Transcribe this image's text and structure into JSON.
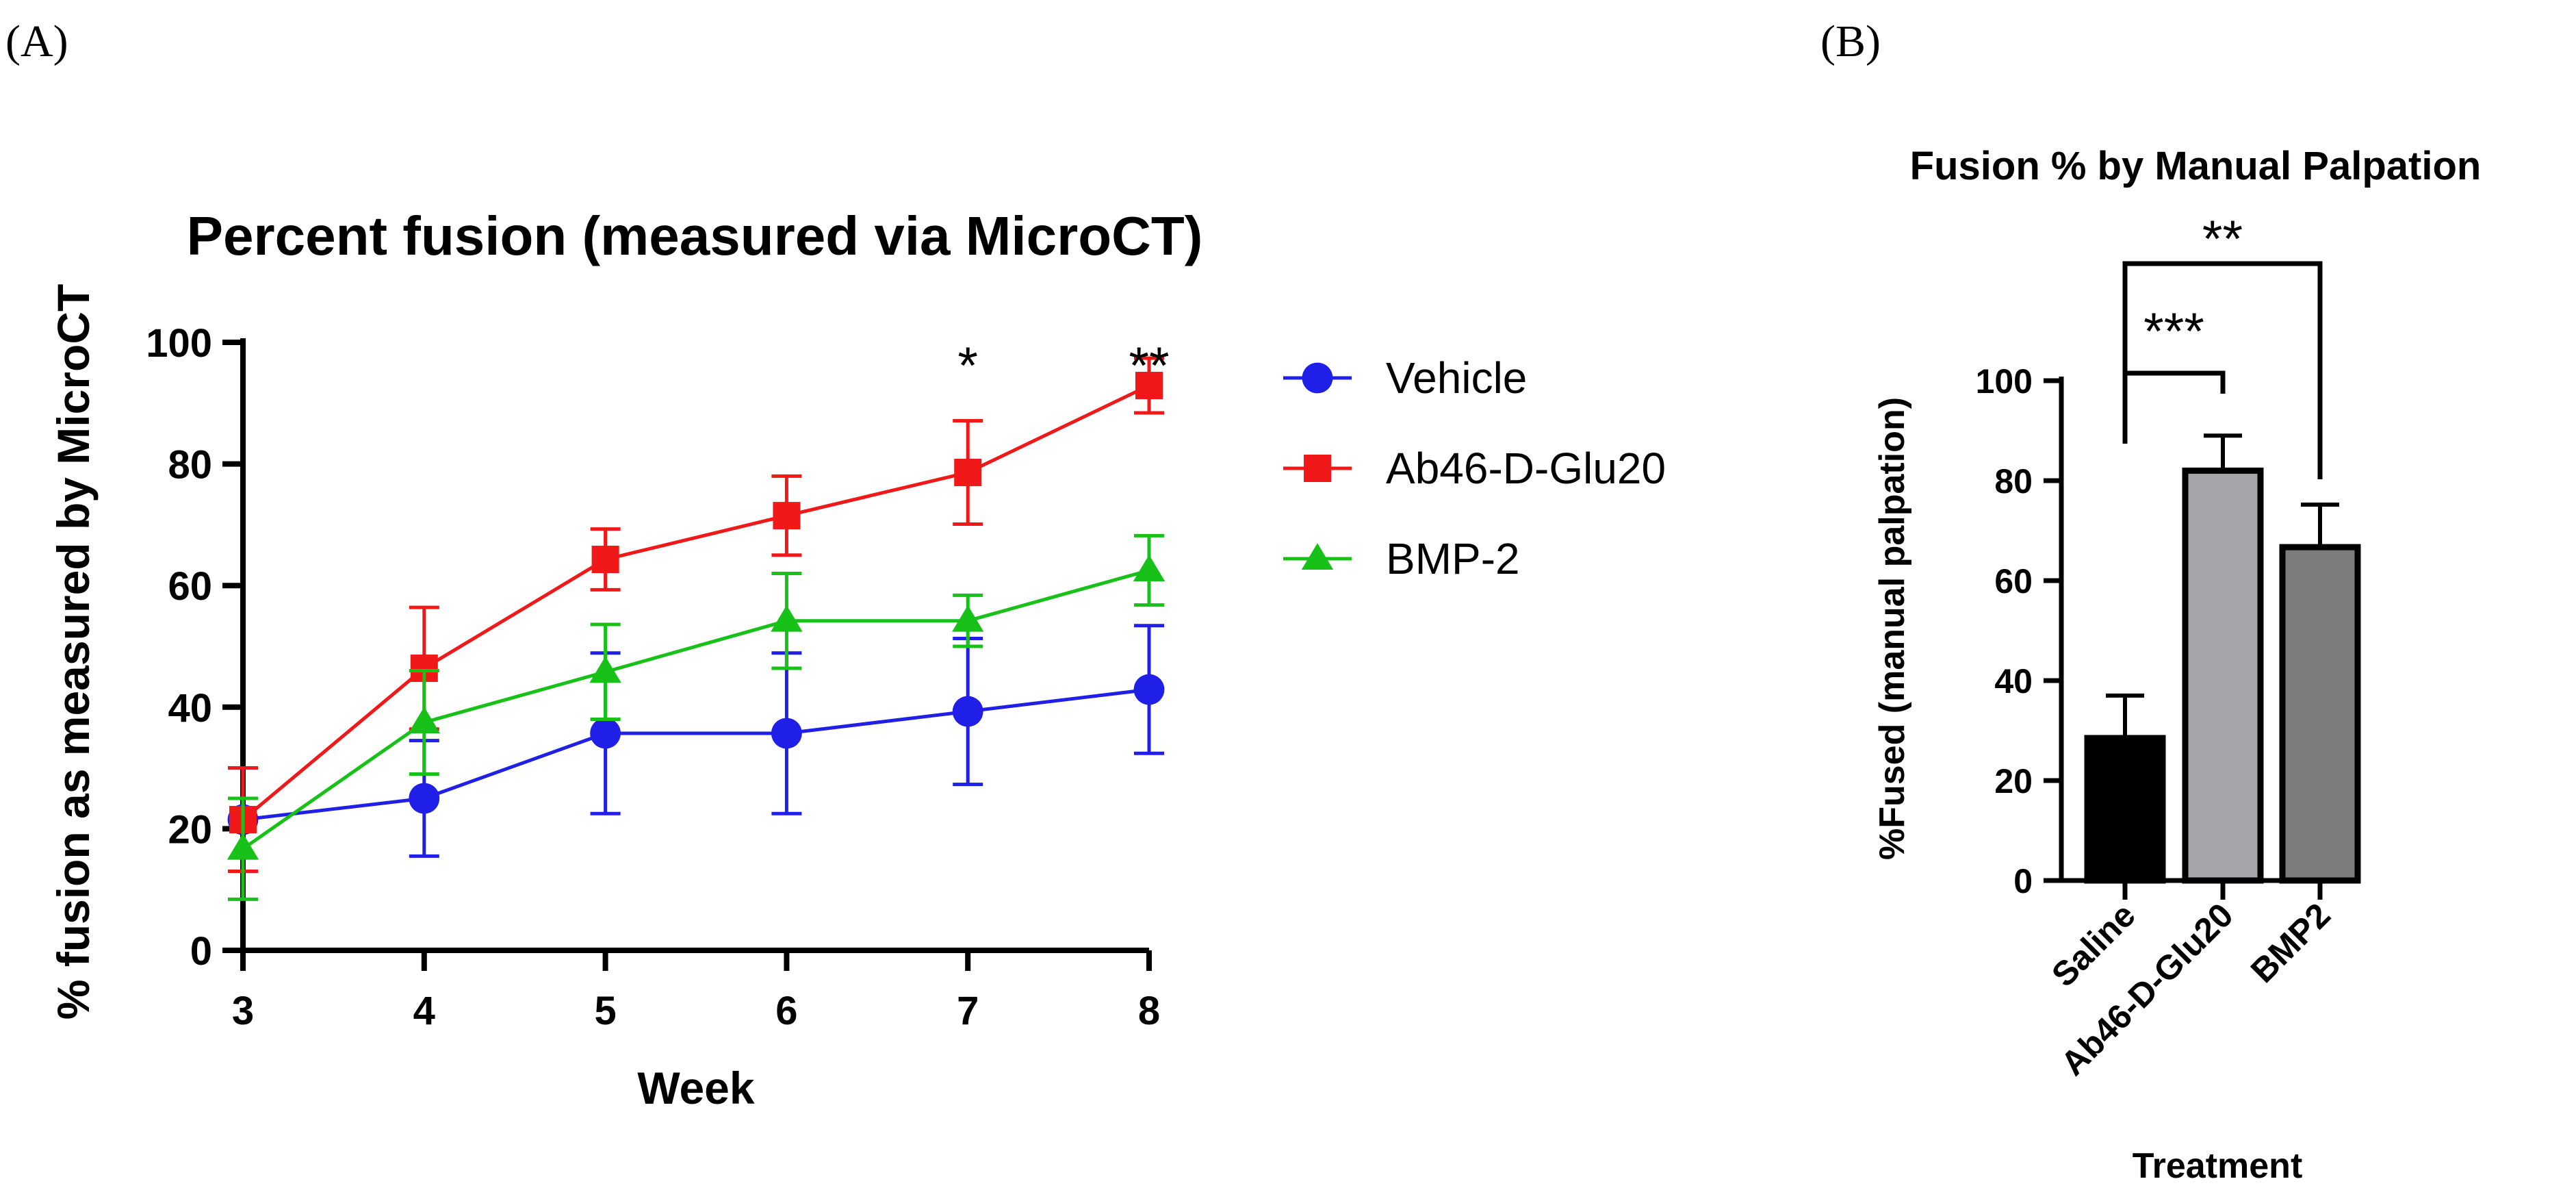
{
  "panels": {
    "a": "(A)",
    "b": "(B)"
  },
  "chart_data": [
    {
      "type": "line",
      "title": "Percent fusion (measured via MicroCT)",
      "xlabel": "Week",
      "ylabel": "% fusion as measured by MicroCT",
      "x": [
        3,
        4,
        5,
        6,
        7,
        8
      ],
      "xlim": [
        3,
        8
      ],
      "ylim": [
        0,
        100
      ],
      "yticks": [
        0,
        20,
        40,
        60,
        80,
        100
      ],
      "grid": false,
      "legend_position": "right",
      "series": [
        {
          "name": "Vehicle",
          "color": "#1f1fe8",
          "marker": "circle",
          "values": [
            21.5,
            25,
            35.7,
            35.7,
            39.3,
            42.9
          ],
          "errors": [
            8.5,
            9.5,
            13.2,
            13.2,
            12,
            10.5
          ]
        },
        {
          "name": "Ab46-D-Glu20",
          "color": "#f01818",
          "marker": "square",
          "values": [
            21.5,
            46.4,
            64.3,
            71.5,
            78.6,
            92.9
          ],
          "errors": [
            8.5,
            10,
            5,
            6.5,
            8.5,
            4.5
          ]
        },
        {
          "name": "BMP-2",
          "color": "#17c117",
          "marker": "triangle",
          "values": [
            16.7,
            37.5,
            45.8,
            54.2,
            54.2,
            62.5
          ],
          "errors": [
            8.3,
            8.5,
            7.8,
            7.8,
            4.2,
            5.7
          ]
        }
      ],
      "annotations": [
        {
          "x": 7,
          "text": "*"
        },
        {
          "x": 8,
          "text": "**"
        }
      ]
    },
    {
      "type": "bar",
      "title": "Fusion % by Manual Palpation",
      "xlabel": "Treatment",
      "ylabel": "%Fused (manual palpation)",
      "categories": [
        "Saline",
        "Ab46-D-Glu20",
        "BMP2"
      ],
      "values": [
        28.5,
        82,
        66.7
      ],
      "errors": [
        8.5,
        7,
        8.5
      ],
      "colors": [
        "#000000",
        "#a6a6aa",
        "#7c7c7c"
      ],
      "ylim": [
        0,
        100
      ],
      "yticks": [
        0,
        20,
        40,
        60,
        80,
        100
      ],
      "significance": [
        {
          "from": "Saline",
          "to": "Ab46-D-Glu20",
          "text": "***"
        },
        {
          "from": "Saline",
          "to": "BMP2",
          "text": "**"
        }
      ]
    }
  ]
}
